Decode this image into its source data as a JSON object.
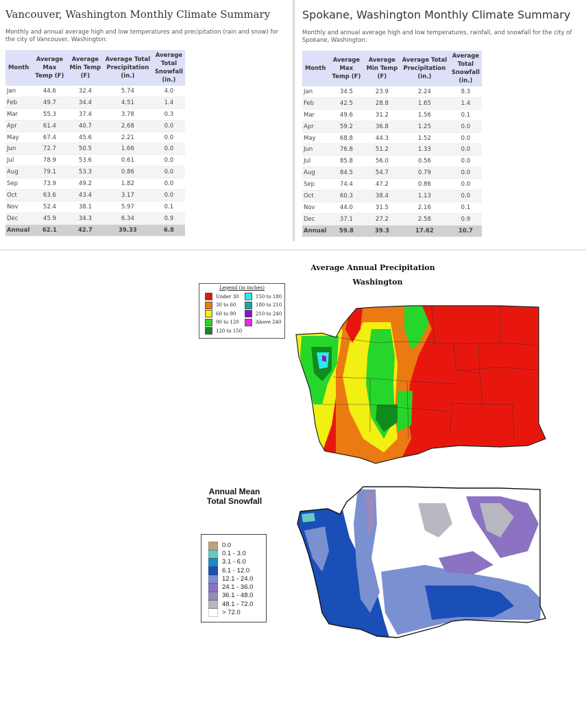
{
  "vancouver": {
    "title": "Vancouver, Washington Monthly Climate Summary",
    "description": "Monthly and annual average high and low temperatures and precipitation (rain and snow) for the city of Vancouver, Washington:",
    "headers": [
      "Month",
      "Average Max Temp (F)",
      "Average Min Temp (F)",
      "Average Total Precipitation (in.)",
      "Average Total Snowfall (in.)"
    ],
    "rows": [
      [
        "Jan",
        "44.6",
        "32.4",
        "5.74",
        "4.0"
      ],
      [
        "Feb",
        "49.7",
        "34.4",
        "4.51",
        "1.4"
      ],
      [
        "Mar",
        "55.3",
        "37.4",
        "3.78",
        "0.3"
      ],
      [
        "Apr",
        "61.4",
        "40.7",
        "2.68",
        "0.0"
      ],
      [
        "May",
        "67.4",
        "45.6",
        "2.21",
        "0.0"
      ],
      [
        "Jun",
        "72.7",
        "50.5",
        "1.66",
        "0.0"
      ],
      [
        "Jul",
        "78.9",
        "53.6",
        "0.61",
        "0.0"
      ],
      [
        "Aug",
        "79.1",
        "53.3",
        "0.86",
        "0.0"
      ],
      [
        "Sep",
        "73.9",
        "49.2",
        "1.82",
        "0.0"
      ],
      [
        "Oct",
        "63.6",
        "43.4",
        "3.17",
        "0.0"
      ],
      [
        "Nov",
        "52.4",
        "38.1",
        "5.97",
        "0.1"
      ],
      [
        "Dec",
        "45.9",
        "34.3",
        "6.34",
        "0.9"
      ]
    ],
    "annual": [
      "Annual",
      "62.1",
      "42.7",
      "39.33",
      "6.8"
    ]
  },
  "spokane": {
    "title": "Spokane, Washington Monthly Climate Summary",
    "description": "Monthly and annual average high and low temperatures, rainfall, and snowfall for the city of Spokane, Washington:",
    "headers": [
      "Month",
      "Average Max Temp (F)",
      "Average Min Temp (F)",
      "Average Total Precipitation (in.)",
      "Average Total Snowfall (in.)"
    ],
    "rows": [
      [
        "Jan",
        "34.5",
        "23.9",
        "2.24",
        "8.3"
      ],
      [
        "Feb",
        "42.5",
        "28.8",
        "1.65",
        "1.4"
      ],
      [
        "Mar",
        "49.6",
        "31.2",
        "1.56",
        "0.1"
      ],
      [
        "Apr",
        "59.2",
        "36.8",
        "1.25",
        "0.0"
      ],
      [
        "May",
        "68.8",
        "44.3",
        "1.52",
        "0.0"
      ],
      [
        "Jun",
        "76.8",
        "51.2",
        "1.33",
        "0.0"
      ],
      [
        "Jul",
        "85.8",
        "56.0",
        "0.56",
        "0.0"
      ],
      [
        "Aug",
        "84.5",
        "54.7",
        "0.79",
        "0.0"
      ],
      [
        "Sep",
        "74.4",
        "47.2",
        "0.86",
        "0.0"
      ],
      [
        "Oct",
        "60.3",
        "38.4",
        "1.13",
        "0.0"
      ],
      [
        "Nov",
        "44.0",
        "31.5",
        "2.16",
        "0.1"
      ],
      [
        "Dec",
        "37.1",
        "27.2",
        "2.58",
        "0.9"
      ]
    ],
    "annual": [
      "Annual",
      "59.8",
      "39.3",
      "17.62",
      "10.7"
    ]
  },
  "precip_map": {
    "title": "Average Annual Precipitation",
    "subtitle": "Washington",
    "legend_title": "Legend (in inches)",
    "legend": [
      {
        "label": "Under 30",
        "color": "#e8170e"
      },
      {
        "label": "30 to 60",
        "color": "#ec7a12"
      },
      {
        "label": "60 to 90",
        "color": "#f2ef12"
      },
      {
        "label": "90 to 120",
        "color": "#27d62a"
      },
      {
        "label": "120 to 150",
        "color": "#108c1c"
      },
      {
        "label": "150 to 180",
        "color": "#2ee8ee"
      },
      {
        "label": "180 to 210",
        "color": "#1aa6a0"
      },
      {
        "label": "210 to 240",
        "color": "#8d12c6"
      },
      {
        "label": "Above 240",
        "color": "#e22ce0"
      }
    ]
  },
  "snow_map": {
    "title_line1": "Annual Mean",
    "title_line2": "Total Snowfall",
    "legend": [
      {
        "label": "0.0",
        "color": "#bfa17a"
      },
      {
        "label": "0.1 - 3.0",
        "color": "#66c8c0"
      },
      {
        "label": "3.1 - 6.0",
        "color": "#1b88cc"
      },
      {
        "label": "6.1 - 12.0",
        "color": "#1a4fb8"
      },
      {
        "label": "12.1 - 24.0",
        "color": "#7a90d0"
      },
      {
        "label": "24.1 - 36.0",
        "color": "#8c72c2"
      },
      {
        "label": "36.1 - 48.0",
        "color": "#9a8ab8"
      },
      {
        "label": "48.1 - 72.0",
        "color": "#b8b8c0"
      },
      {
        "label": "> 72.0",
        "color": "#ffffff"
      }
    ]
  }
}
